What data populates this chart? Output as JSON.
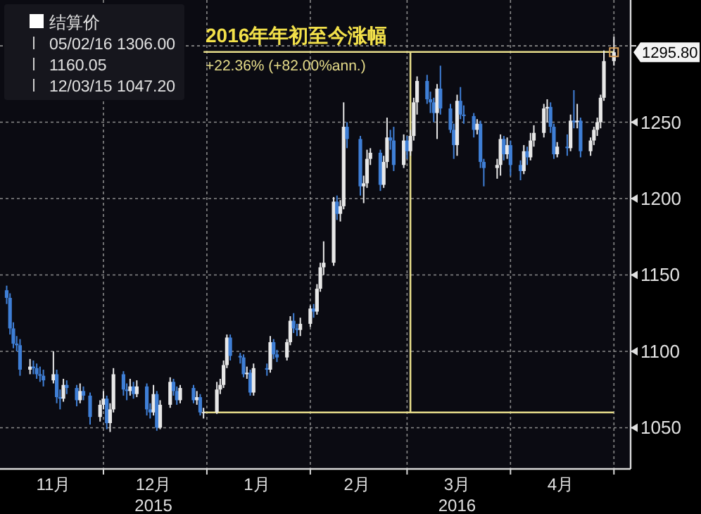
{
  "chart_data": {
    "type": "candlestick",
    "xlim": [
      "2015-10-31",
      "2016-05-07"
    ],
    "ylim": [
      1023,
      1330
    ],
    "yticks": [
      1050,
      1100,
      1150,
      1200,
      1250,
      {
        "value": 1300,
        "label": null
      }
    ],
    "xticks": [
      {
        "value": "2015-11-16",
        "label": "11月"
      },
      {
        "value": "2015-12-01",
        "label": null
      },
      {
        "value": "2015-12-16",
        "label": "12月\n2015"
      },
      {
        "value": "2016-01-01",
        "label": null
      },
      {
        "value": "2016-01-16",
        "label": "1月"
      },
      {
        "value": "2016-02-01",
        "label": null
      },
      {
        "value": "2016-02-15",
        "label": "2月"
      },
      {
        "value": "2016-03-01",
        "label": null
      },
      {
        "value": "2016-03-16",
        "label": "3月\n2016"
      },
      {
        "value": "2016-04-01",
        "label": null
      },
      {
        "value": "2016-04-16",
        "label": "4月"
      },
      {
        "value": "2016-05-02",
        "label": null
      }
    ],
    "grid": true,
    "legend": "top left",
    "annotations": [
      "2016年年初至今涨幅",
      "+22.36% (+82.00%ann.)",
      "05/02/16 1306.00",
      "1160.05",
      "12/03/15 1047.20",
      {
        "text": "1295.80",
        "x": "2016-05-02",
        "y": 1295.8
      }
    ],
    "series": [
      {
        "name": "结算价",
        "color": "#ffffff",
        "x": [
          "2015-11-02",
          "2015-11-03",
          "2015-11-04",
          "2015-11-05",
          "2015-11-06",
          "2015-11-09",
          "2015-11-10",
          "2015-11-11",
          "2015-11-12",
          "2015-11-13",
          "2015-11-16",
          "2015-11-17",
          "2015-11-18",
          "2015-11-19",
          "2015-11-20",
          "2015-11-23",
          "2015-11-24",
          "2015-11-25",
          "2015-11-27",
          "2015-11-30",
          "2015-12-01",
          "2015-12-02",
          "2015-12-03",
          "2015-12-04",
          "2015-12-07",
          "2015-12-08",
          "2015-12-09",
          "2015-12-10",
          "2015-12-11",
          "2015-12-14",
          "2015-12-15",
          "2015-12-16",
          "2015-12-17",
          "2015-12-18",
          "2015-12-21",
          "2015-12-22",
          "2015-12-23",
          "2015-12-24",
          "2015-12-28",
          "2015-12-29",
          "2015-12-30",
          "2015-12-31",
          "2016-01-04",
          "2016-01-05",
          "2016-01-06",
          "2016-01-07",
          "2016-01-08",
          "2016-01-11",
          "2016-01-12",
          "2016-01-13",
          "2016-01-14",
          "2016-01-15",
          "2016-01-19",
          "2016-01-20",
          "2016-01-21",
          "2016-01-22",
          "2016-01-25",
          "2016-01-26",
          "2016-01-27",
          "2016-01-28",
          "2016-01-29",
          "2016-02-01",
          "2016-02-02",
          "2016-02-03",
          "2016-02-04",
          "2016-02-05",
          "2016-02-08",
          "2016-02-09",
          "2016-02-10",
          "2016-02-11",
          "2016-02-12",
          "2016-02-16",
          "2016-02-17",
          "2016-02-18",
          "2016-02-19",
          "2016-02-22",
          "2016-02-23",
          "2016-02-24",
          "2016-02-25",
          "2016-02-26",
          "2016-02-29",
          "2016-03-01",
          "2016-03-02",
          "2016-03-03",
          "2016-03-04",
          "2016-03-07",
          "2016-03-08",
          "2016-03-09",
          "2016-03-10",
          "2016-03-11",
          "2016-03-14",
          "2016-03-15",
          "2016-03-16",
          "2016-03-17",
          "2016-03-18",
          "2016-03-21",
          "2016-03-22",
          "2016-03-23",
          "2016-03-24",
          "2016-03-28",
          "2016-03-29",
          "2016-03-30",
          "2016-03-31",
          "2016-04-01",
          "2016-04-04",
          "2016-04-05",
          "2016-04-06",
          "2016-04-07",
          "2016-04-08",
          "2016-04-11",
          "2016-04-12",
          "2016-04-13",
          "2016-04-14",
          "2016-04-15",
          "2016-04-18",
          "2016-04-19",
          "2016-04-20",
          "2016-04-21",
          "2016-04-22",
          "2016-04-25",
          "2016-04-26",
          "2016-04-27",
          "2016-04-28",
          "2016-04-29",
          "2016-05-02"
        ],
        "ohlc": [
          [
            1140,
            1143,
            1131,
            1135
          ],
          [
            1135,
            1138,
            1111,
            1115
          ],
          [
            1115,
            1119,
            1102,
            1105
          ],
          [
            1105,
            1110,
            1100,
            1104
          ],
          [
            1104,
            1108,
            1084,
            1088
          ],
          [
            1088,
            1095,
            1085,
            1090
          ],
          [
            1090,
            1094,
            1085,
            1089
          ],
          [
            1089,
            1092,
            1082,
            1085
          ],
          [
            1085,
            1090,
            1080,
            1084
          ],
          [
            1084,
            1088,
            1077,
            1081
          ],
          [
            1081,
            1100,
            1079,
            1085
          ],
          [
            1085,
            1088,
            1066,
            1070
          ],
          [
            1070,
            1075,
            1062,
            1069
          ],
          [
            1069,
            1082,
            1067,
            1078
          ],
          [
            1078,
            1081,
            1072,
            1076
          ],
          [
            1076,
            1078,
            1064,
            1068
          ],
          [
            1068,
            1079,
            1066,
            1074
          ],
          [
            1074,
            1077,
            1068,
            1071
          ],
          [
            1071,
            1073,
            1052,
            1057
          ],
          [
            1057,
            1068,
            1054,
            1065
          ],
          [
            1065,
            1074,
            1062,
            1069
          ],
          [
            1069,
            1071,
            1049,
            1053
          ],
          [
            1053,
            1066,
            1047.2,
            1062
          ],
          [
            1062,
            1089,
            1060,
            1085
          ],
          [
            1085,
            1087,
            1071,
            1075
          ],
          [
            1075,
            1079,
            1068,
            1074
          ],
          [
            1074,
            1082,
            1071,
            1077
          ],
          [
            1077,
            1080,
            1069,
            1072
          ],
          [
            1072,
            1081,
            1070,
            1077
          ],
          [
            1077,
            1079,
            1058,
            1062
          ],
          [
            1062,
            1066,
            1056,
            1060
          ],
          [
            1060,
            1078,
            1058,
            1072
          ],
          [
            1072,
            1074,
            1048,
            1050
          ],
          [
            1050,
            1068,
            1049,
            1065
          ],
          [
            1065,
            1083,
            1063,
            1080
          ],
          [
            1080,
            1082,
            1071,
            1074
          ],
          [
            1074,
            1077,
            1065,
            1068
          ],
          [
            1068,
            1078,
            1066,
            1076
          ],
          [
            1076,
            1078,
            1066,
            1068
          ],
          [
            1068,
            1074,
            1065,
            1070
          ],
          [
            1070,
            1072,
            1058,
            1060
          ],
          [
            1060,
            1063,
            1056,
            1060.2
          ],
          [
            1060.2,
            1080,
            1059,
            1075
          ],
          [
            1075,
            1082,
            1072,
            1078
          ],
          [
            1078,
            1094,
            1076,
            1091
          ],
          [
            1091,
            1111,
            1089,
            1109
          ],
          [
            1109,
            1111,
            1094,
            1097
          ],
          [
            1097,
            1099,
            1092,
            1096
          ],
          [
            1096,
            1098,
            1083,
            1085
          ],
          [
            1085,
            1090,
            1082,
            1086
          ],
          [
            1086,
            1088,
            1071,
            1073
          ],
          [
            1073,
            1092,
            1071,
            1089
          ],
          [
            1089,
            1092,
            1084,
            1088
          ],
          [
            1088,
            1110,
            1086,
            1106
          ],
          [
            1106,
            1108,
            1095,
            1098
          ],
          [
            1098,
            1101,
            1093,
            1096
          ],
          [
            1096,
            1108,
            1094,
            1106
          ],
          [
            1106,
            1123,
            1104,
            1120
          ],
          [
            1120,
            1125,
            1112,
            1115
          ],
          [
            1115,
            1118,
            1110,
            1114
          ],
          [
            1114,
            1122,
            1110,
            1118
          ],
          [
            1118,
            1130,
            1116,
            1128
          ],
          [
            1128,
            1131,
            1122,
            1126
          ],
          [
            1126,
            1144,
            1124,
            1141
          ],
          [
            1141,
            1158,
            1139,
            1155
          ],
          [
            1155,
            1172,
            1150,
            1158
          ],
          [
            1158,
            1201,
            1156,
            1198
          ],
          [
            1198,
            1202,
            1186,
            1190
          ],
          [
            1190,
            1199,
            1185,
            1195
          ],
          [
            1195,
            1263,
            1193,
            1247
          ],
          [
            1247,
            1250,
            1233,
            1239
          ],
          [
            1239,
            1241,
            1202,
            1208
          ],
          [
            1208,
            1215,
            1197,
            1210
          ],
          [
            1210,
            1232,
            1207,
            1226
          ],
          [
            1226,
            1233,
            1222,
            1230
          ],
          [
            1230,
            1232,
            1205,
            1209
          ],
          [
            1209,
            1228,
            1207,
            1224
          ],
          [
            1224,
            1253,
            1220,
            1240
          ],
          [
            1240,
            1245,
            1232,
            1238
          ],
          [
            1238,
            1247,
            1218,
            1222
          ],
          [
            1222,
            1242,
            1220,
            1238
          ],
          [
            1238,
            1241,
            1226,
            1231
          ],
          [
            1231,
            1245,
            1228,
            1241
          ],
          [
            1241,
            1266,
            1238,
            1263
          ],
          [
            1263,
            1280,
            1255,
            1277
          ],
          [
            1277,
            1281,
            1262,
            1265
          ],
          [
            1265,
            1270,
            1256,
            1263
          ],
          [
            1263,
            1266,
            1250,
            1256
          ],
          [
            1256,
            1275,
            1239,
            1272
          ],
          [
            1272,
            1287,
            1255,
            1259
          ],
          [
            1259,
            1262,
            1243,
            1245
          ],
          [
            1245,
            1249,
            1226,
            1235
          ],
          [
            1235,
            1268,
            1228,
            1264
          ],
          [
            1264,
            1273,
            1252,
            1255
          ],
          [
            1255,
            1261,
            1249,
            1254
          ],
          [
            1254,
            1256,
            1240,
            1245
          ],
          [
            1245,
            1252,
            1242,
            1249
          ],
          [
            1249,
            1251,
            1220,
            1224
          ],
          [
            1224,
            1226,
            1208,
            1220
          ],
          [
            1220,
            1226,
            1213,
            1222
          ],
          [
            1222,
            1242,
            1215,
            1239
          ],
          [
            1239,
            1241,
            1225,
            1229
          ],
          [
            1229,
            1240,
            1226,
            1235
          ],
          [
            1235,
            1238,
            1215,
            1222
          ],
          [
            1222,
            1225,
            1212,
            1218
          ],
          [
            1218,
            1235,
            1216,
            1231
          ],
          [
            1231,
            1234,
            1222,
            1227
          ],
          [
            1227,
            1243,
            1225,
            1238
          ],
          [
            1238,
            1248,
            1234,
            1243
          ],
          [
            1243,
            1262,
            1240,
            1259
          ],
          [
            1259,
            1265,
            1250,
            1260
          ],
          [
            1260,
            1263,
            1243,
            1247
          ],
          [
            1247,
            1249,
            1226,
            1229
          ],
          [
            1229,
            1237,
            1227,
            1234
          ],
          [
            1234,
            1242,
            1228,
            1233
          ],
          [
            1233,
            1255,
            1231,
            1251
          ],
          [
            1251,
            1271,
            1246,
            1250
          ],
          [
            1250,
            1262,
            1246,
            1251
          ],
          [
            1251,
            1253,
            1227,
            1231
          ],
          [
            1231,
            1240,
            1228,
            1238
          ],
          [
            1238,
            1247,
            1235,
            1245
          ],
          [
            1245,
            1253,
            1241,
            1250
          ],
          [
            1250,
            1268,
            1246,
            1266
          ],
          [
            1266,
            1297,
            1264,
            1290
          ],
          [
            1290,
            1306,
            1287,
            1295.8
          ]
        ],
        "colors": [
          "#3f7fd6",
          "#3f7fd6",
          "#3f7fd6",
          "#3f7fd6",
          "#3f7fd6",
          "#e8e8e8",
          "#3f7fd6",
          "#3f7fd6",
          "#3f7fd6",
          "#3f7fd6",
          "#e8e8e8",
          "#3f7fd6",
          "#3f7fd6",
          "#e8e8e8",
          "#3f7fd6",
          "#3f7fd6",
          "#e8e8e8",
          "#3f7fd6",
          "#3f7fd6",
          "#e8e8e8",
          "#e8e8e8",
          "#3f7fd6",
          "#e8e8e8",
          "#e8e8e8",
          "#3f7fd6",
          "#3f7fd6",
          "#e8e8e8",
          "#3f7fd6",
          "#e8e8e8",
          "#3f7fd6",
          "#3f7fd6",
          "#e8e8e8",
          "#3f7fd6",
          "#e8e8e8",
          "#e8e8e8",
          "#3f7fd6",
          "#3f7fd6",
          "#e8e8e8",
          "#3f7fd6",
          "#e8e8e8",
          "#3f7fd6",
          "#e8e8e8",
          "#e8e8e8",
          "#e8e8e8",
          "#e8e8e8",
          "#e8e8e8",
          "#3f7fd6",
          "#3f7fd6",
          "#3f7fd6",
          "#e8e8e8",
          "#3f7fd6",
          "#e8e8e8",
          "#3f7fd6",
          "#e8e8e8",
          "#3f7fd6",
          "#3f7fd6",
          "#e8e8e8",
          "#e8e8e8",
          "#3f7fd6",
          "#3f7fd6",
          "#e8e8e8",
          "#e8e8e8",
          "#3f7fd6",
          "#e8e8e8",
          "#e8e8e8",
          "#e8e8e8",
          "#e8e8e8",
          "#3f7fd6",
          "#e8e8e8",
          "#e8e8e8",
          "#3f7fd6",
          "#3f7fd6",
          "#e8e8e8",
          "#e8e8e8",
          "#e8e8e8",
          "#3f7fd6",
          "#e8e8e8",
          "#e8e8e8",
          "#3f7fd6",
          "#3f7fd6",
          "#e8e8e8",
          "#3f7fd6",
          "#e8e8e8",
          "#e8e8e8",
          "#e8e8e8",
          "#3f7fd6",
          "#3f7fd6",
          "#3f7fd6",
          "#e8e8e8",
          "#3f7fd6",
          "#3f7fd6",
          "#3f7fd6",
          "#e8e8e8",
          "#3f7fd6",
          "#3f7fd6",
          "#3f7fd6",
          "#e8e8e8",
          "#3f7fd6",
          "#3f7fd6",
          "#e8e8e8",
          "#e8e8e8",
          "#3f7fd6",
          "#e8e8e8",
          "#3f7fd6",
          "#3f7fd6",
          "#e8e8e8",
          "#3f7fd6",
          "#e8e8e8",
          "#e8e8e8",
          "#e8e8e8",
          "#e8e8e8",
          "#3f7fd6",
          "#3f7fd6",
          "#e8e8e8",
          "#3f7fd6",
          "#e8e8e8",
          "#3f7fd6",
          "#e8e8e8",
          "#3f7fd6",
          "#e8e8e8",
          "#e8e8e8",
          "#e8e8e8",
          "#e8e8e8",
          "#e8e8e8",
          "#e8e8e8"
        ]
      },
      {
        "type": "line",
        "color": "#e6dc8a",
        "x": [
          "2015-12-31",
          "2016-05-02"
        ],
        "values": [
          1060,
          1060
        ]
      },
      {
        "type": "line",
        "color": "#e6dc8a",
        "x": [
          "2016-03-02",
          "2016-03-02"
        ],
        "values": [
          1060,
          1296
        ]
      },
      {
        "type": "line",
        "color": "#e6dc8a",
        "x": [
          "2015-12-31",
          "2016-05-02"
        ],
        "values": [
          1296,
          1296
        ]
      }
    ]
  }
}
